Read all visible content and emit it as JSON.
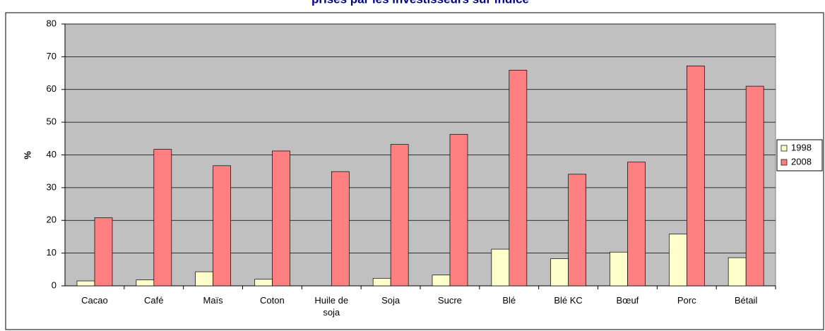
{
  "chart_data": {
    "type": "bar",
    "title": "prises par les investisseurs sur indice",
    "y_label": "%",
    "categories": [
      "Cacao",
      "Café",
      "Maïs",
      "Coton",
      "Huile de soja",
      "Soja",
      "Sucre",
      "Blé",
      "Blé KC",
      "Bœuf",
      "Porc",
      "Bétail"
    ],
    "series": [
      {
        "name": "1998",
        "color": "#ffffcc",
        "values": [
          1.5,
          1.8,
          4.3,
          2.0,
          0,
          2.3,
          3.3,
          11.2,
          8.3,
          10.3,
          15.8,
          8.6
        ]
      },
      {
        "name": "2008",
        "color": "#ff8080",
        "values": [
          20.8,
          41.7,
          36.7,
          41.2,
          34.9,
          43.2,
          46.3,
          65.9,
          34.1,
          37.8,
          67.2,
          61.0
        ]
      }
    ],
    "ylim": [
      0,
      80
    ],
    "yticks": [
      0,
      10,
      20,
      30,
      40,
      50,
      60,
      70,
      80
    ],
    "grid": true,
    "legend": "right"
  }
}
